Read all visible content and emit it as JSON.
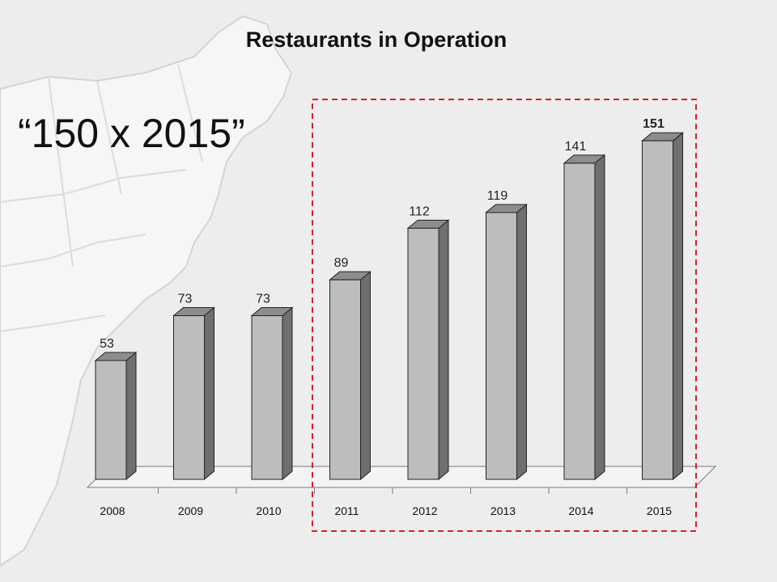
{
  "chart_data": {
    "type": "bar",
    "title": "Restaurants in Operation",
    "annotation": "“150 x 2015”",
    "categories": [
      "2008",
      "2009",
      "2010",
      "2011",
      "2012",
      "2013",
      "2014",
      "2015"
    ],
    "values": [
      53,
      73,
      73,
      89,
      112,
      119,
      141,
      151
    ],
    "data_labels": [
      "53",
      "73",
      "73",
      "89",
      "112",
      "119",
      "141",
      "151"
    ],
    "bold_labels": [
      false,
      false,
      false,
      false,
      false,
      false,
      false,
      true
    ],
    "highlighted_range": [
      "2011",
      "2015"
    ],
    "ylim": [
      0,
      160
    ],
    "grid": false,
    "style": "3d-columns",
    "colors": {
      "bar_front": "#bdbdbd",
      "bar_side": "#6f6f6f",
      "bar_top": "#8d8d8d",
      "highlight_box": "#d81f2a"
    }
  }
}
